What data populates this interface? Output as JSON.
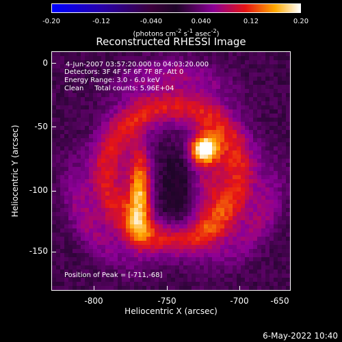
{
  "colorbar": {
    "ticks": [
      "-0.20",
      "-0.12",
      "-0.040",
      "0.040",
      "0.12",
      "0.20"
    ],
    "unit_parts": [
      "(photons cm",
      "-2",
      " s",
      "-1",
      " asec",
      "-2",
      ")"
    ]
  },
  "title": "Reconstructed RHESSI Image",
  "info": {
    "time": "4-Jun-2007 03:57:20.000 to 04:03:20.000",
    "detectors": "Detectors: 3F 4F 5F 6F 7F 8F, Att 0",
    "energy": "Energy Range: 3.0 - 6.0 keV",
    "clean": "Clean     Total counts: 5.96E+04",
    "peak": "Position of Peak = [-711,-68]"
  },
  "axes": {
    "xlabel": "Heliocentric X (arcsec)",
    "ylabel": "Heliocentric Y (arcsec)",
    "xticks": [
      "-800",
      "-750",
      "-700",
      "-650"
    ],
    "yticks": [
      "0",
      "-50",
      "-100",
      "-150"
    ]
  },
  "timestamp": "6-May-2022 10:40"
}
